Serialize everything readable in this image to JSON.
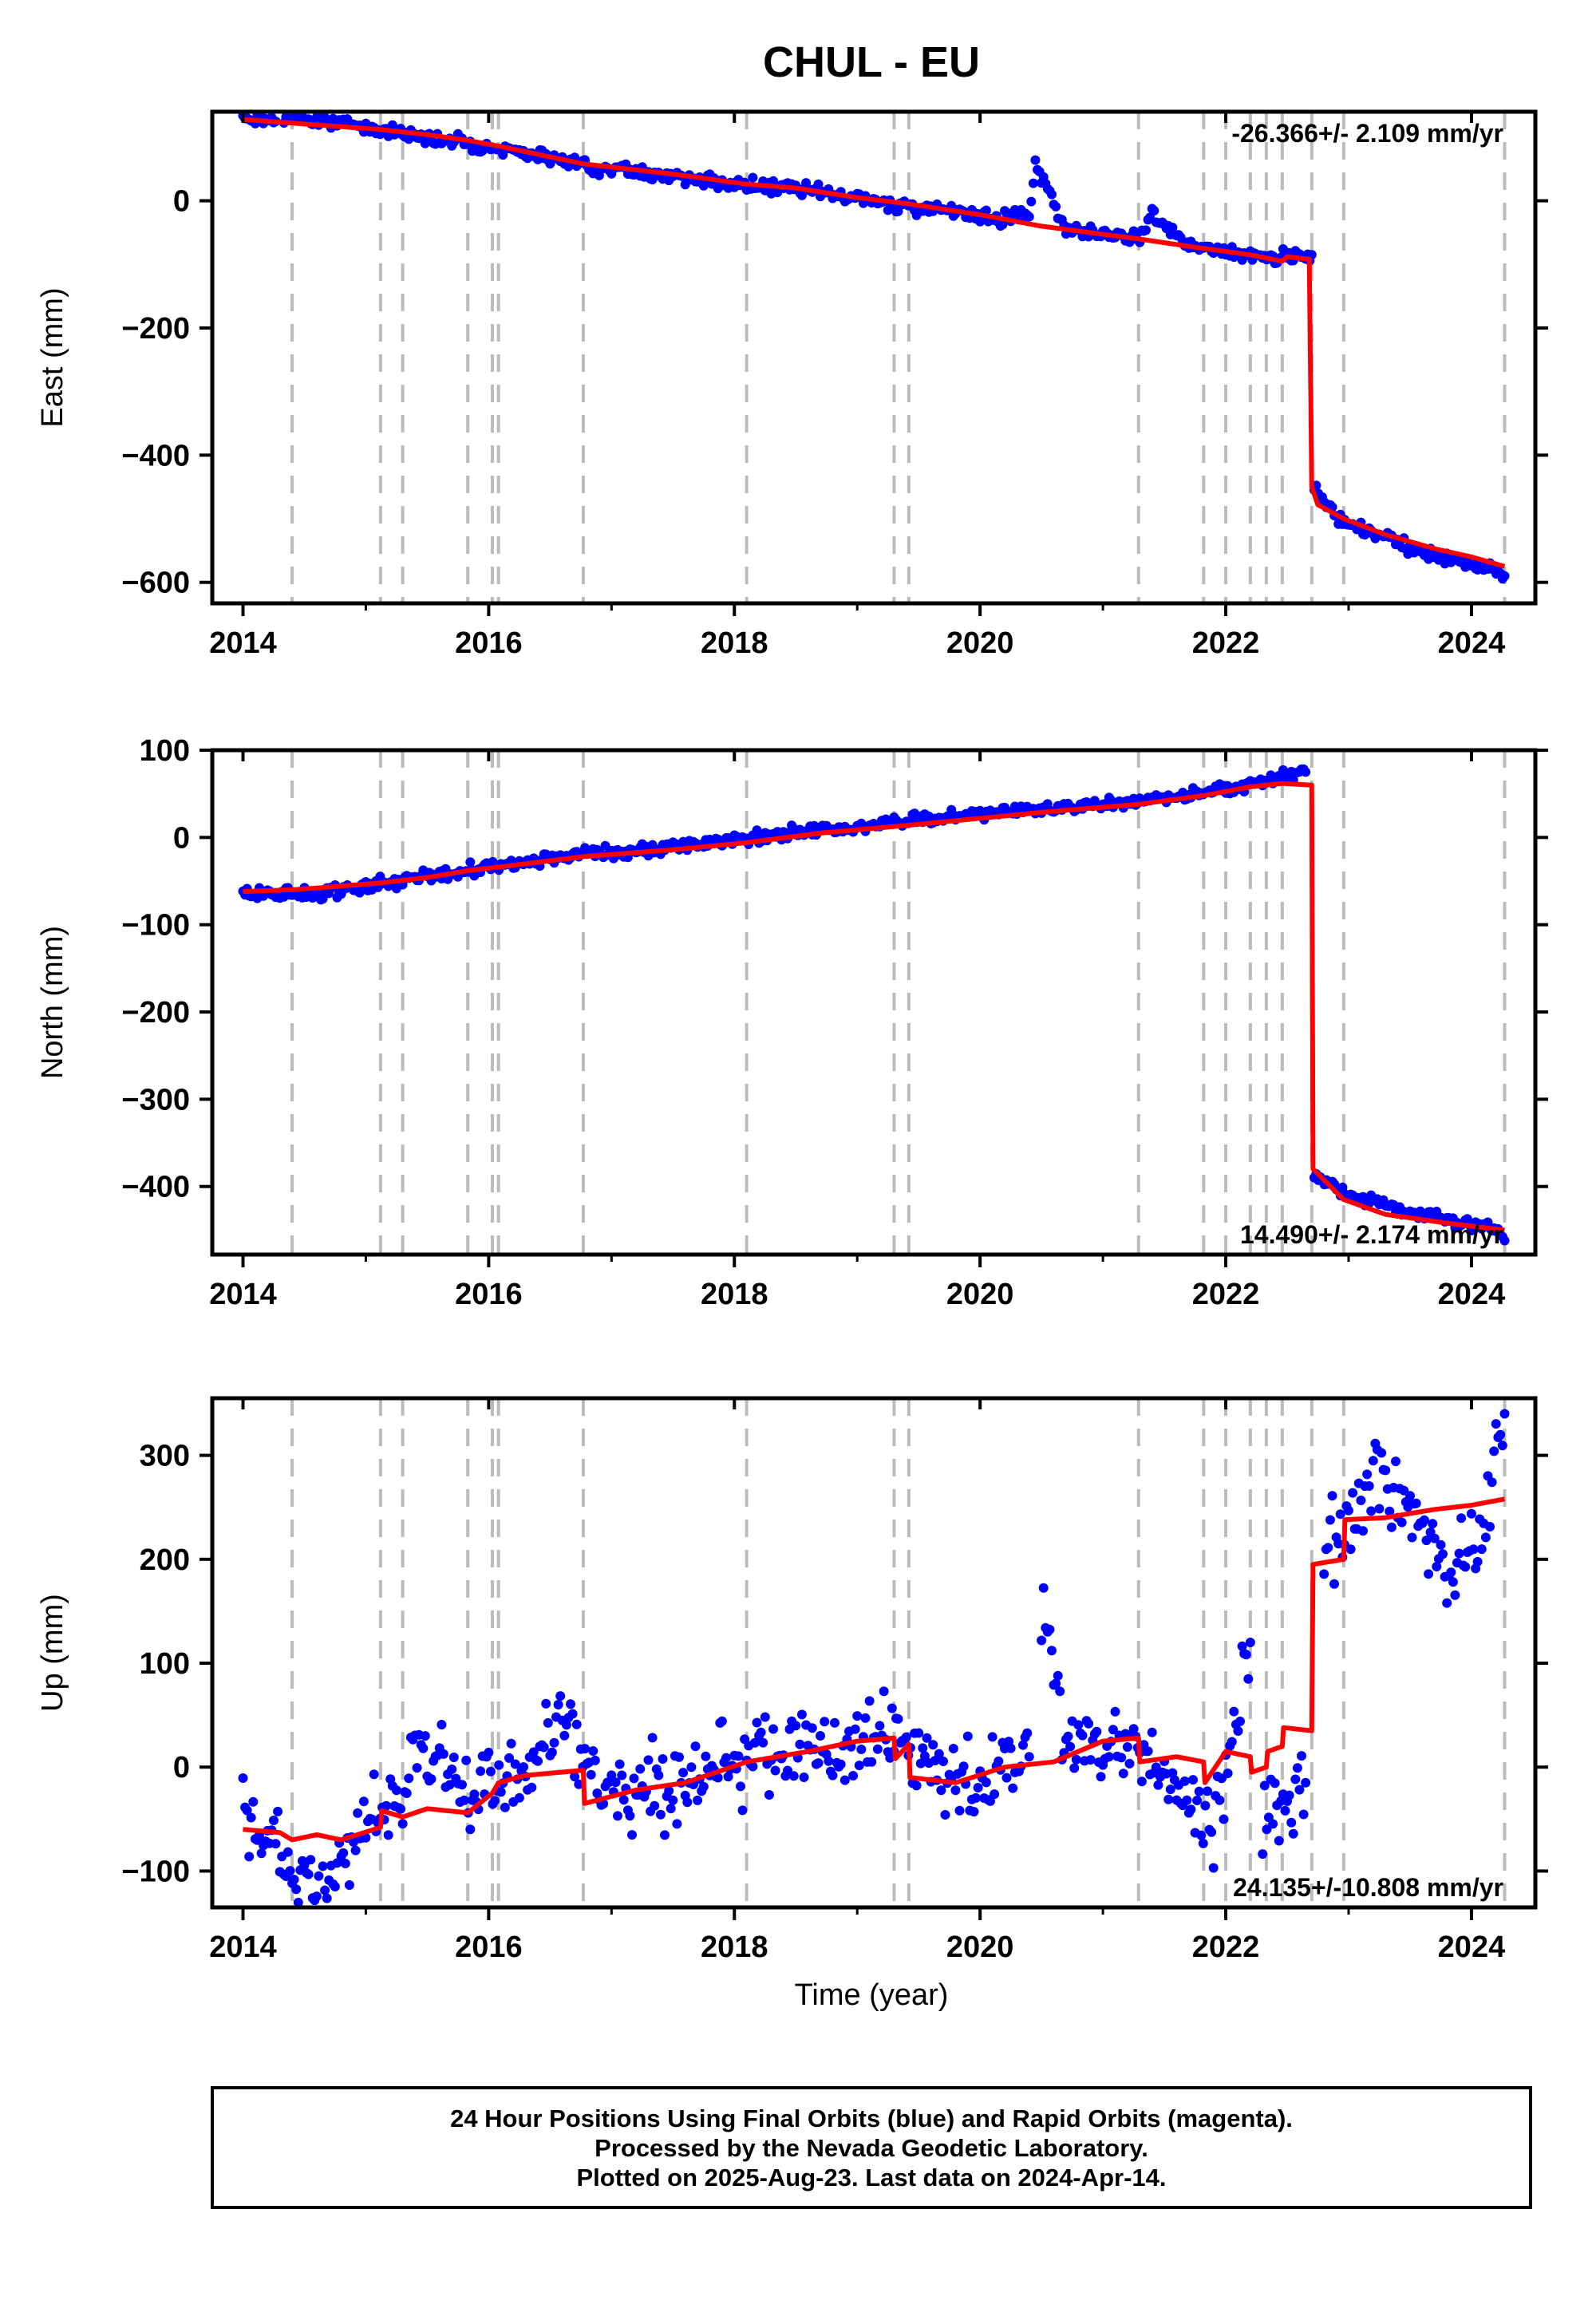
{
  "title": "CHUL - EU",
  "xlabel": "Time (year)",
  "footer": {
    "line1": "24 Hour Positions Using Final Orbits (blue) and Rapid Orbits (magenta).",
    "line2": "Processed by the Nevada Geodetic Laboratory.",
    "line3": "Plotted on 2025-Aug-23. Last data on 2024-Apr-14."
  },
  "colors": {
    "points": "#0000ff",
    "model": "#ff0000",
    "events": "#bbbbbb",
    "frame": "#000000"
  },
  "chart_data": [
    {
      "type": "scatter",
      "panel": "east",
      "ylabel": "East (mm)",
      "rate_text": "-26.366+/- 2.109 mm/yr",
      "rate_position": "top-right",
      "xlim": [
        2013.75,
        2024.52
      ],
      "ylim": [
        -633,
        140
      ],
      "xticks": [
        2014,
        2016,
        2018,
        2020,
        2022,
        2024
      ],
      "yticks": [
        0,
        -200,
        -400,
        -600
      ],
      "event_lines_x": [
        2014.4,
        2015.12,
        2015.3,
        2015.83,
        2016.03,
        2016.08,
        2016.77,
        2018.1,
        2019.3,
        2019.42,
        2021.29,
        2021.82,
        2022.0,
        2022.2,
        2022.33,
        2022.46,
        2022.7,
        2022.96,
        2024.27
      ],
      "series": [
        {
          "kind": "scatter",
          "values": [
            [
              2014.0,
              130
            ],
            [
              2014.6,
              130
            ],
            [
              2015.0,
              115
            ],
            [
              2015.2,
              110
            ],
            [
              2015.5,
              100
            ],
            [
              2015.8,
              92
            ],
            [
              2016.0,
              85
            ],
            [
              2016.3,
              75
            ],
            [
              2016.6,
              62
            ],
            [
              2016.9,
              53
            ],
            [
              2017.2,
              46
            ],
            [
              2017.5,
              39
            ],
            [
              2017.8,
              30
            ],
            [
              2018.1,
              25
            ],
            [
              2018.4,
              20
            ],
            [
              2018.7,
              12
            ],
            [
              2019.0,
              4
            ],
            [
              2019.3,
              -5
            ],
            [
              2019.6,
              -13
            ],
            [
              2019.9,
              -20
            ],
            [
              2020.2,
              -28
            ],
            [
              2020.4,
              -20
            ],
            [
              2020.45,
              55
            ],
            [
              2020.7,
              -42
            ],
            [
              2021.0,
              -50
            ],
            [
              2021.3,
              -58
            ],
            [
              2021.4,
              -20
            ],
            [
              2021.7,
              -72
            ],
            [
              2022.0,
              -80
            ],
            [
              2022.3,
              -90
            ],
            [
              2022.7,
              -85
            ],
            [
              2022.72,
              -450
            ],
            [
              2022.9,
              -500
            ],
            [
              2023.2,
              -520
            ],
            [
              2023.5,
              -545
            ],
            [
              2023.8,
              -565
            ],
            [
              2024.1,
              -575
            ],
            [
              2024.27,
              -590
            ]
          ]
        },
        {
          "kind": "model",
          "values": [
            [
              2014.0,
              128
            ],
            [
              2014.4,
              122
            ],
            [
              2015.12,
              112
            ],
            [
              2015.5,
              104
            ],
            [
              2015.83,
              95
            ],
            [
              2016.08,
              86
            ],
            [
              2016.77,
              58
            ],
            [
              2017.5,
              42
            ],
            [
              2018.1,
              26
            ],
            [
              2018.5,
              20
            ],
            [
              2019.0,
              5
            ],
            [
              2019.42,
              -5
            ],
            [
              2020.0,
              -22
            ],
            [
              2020.5,
              -40
            ],
            [
              2021.29,
              -60
            ],
            [
              2021.82,
              -75
            ],
            [
              2022.2,
              -85
            ],
            [
              2022.46,
              -95
            ],
            [
              2022.5,
              -88
            ],
            [
              2022.68,
              -92
            ],
            [
              2022.7,
              -450
            ],
            [
              2022.75,
              -478
            ],
            [
              2022.96,
              -500
            ],
            [
              2023.3,
              -525
            ],
            [
              2023.7,
              -547
            ],
            [
              2024.0,
              -560
            ],
            [
              2024.27,
              -575
            ]
          ]
        }
      ]
    },
    {
      "type": "scatter",
      "panel": "north",
      "ylabel": "North (mm)",
      "rate_text": "14.490+/- 2.174 mm/yr",
      "rate_position": "bottom-right",
      "xlim": [
        2013.75,
        2024.52
      ],
      "ylim": [
        -478,
        100
      ],
      "xticks": [
        2014,
        2016,
        2018,
        2020,
        2022,
        2024
      ],
      "yticks": [
        100,
        0,
        -100,
        -200,
        -300,
        -400
      ],
      "event_lines_x": [
        2014.4,
        2015.12,
        2015.3,
        2015.83,
        2016.03,
        2016.08,
        2016.77,
        2018.1,
        2019.3,
        2019.42,
        2021.29,
        2021.82,
        2022.0,
        2022.2,
        2022.33,
        2022.46,
        2022.7,
        2022.96,
        2024.27
      ],
      "series": [
        {
          "kind": "scatter",
          "values": [
            [
              2014.0,
              -63
            ],
            [
              2014.6,
              -65
            ],
            [
              2015.0,
              -55
            ],
            [
              2015.3,
              -48
            ],
            [
              2015.8,
              -38
            ],
            [
              2016.2,
              -30
            ],
            [
              2016.6,
              -22
            ],
            [
              2017.0,
              -18
            ],
            [
              2017.4,
              -12
            ],
            [
              2017.8,
              -6
            ],
            [
              2018.2,
              0
            ],
            [
              2018.6,
              8
            ],
            [
              2019.0,
              12
            ],
            [
              2019.4,
              20
            ],
            [
              2019.8,
              25
            ],
            [
              2020.2,
              28
            ],
            [
              2020.6,
              33
            ],
            [
              2021.0,
              38
            ],
            [
              2021.4,
              42
            ],
            [
              2021.8,
              50
            ],
            [
              2022.2,
              60
            ],
            [
              2022.65,
              75
            ],
            [
              2022.72,
              -385
            ],
            [
              2023.0,
              -410
            ],
            [
              2023.4,
              -425
            ],
            [
              2023.8,
              -438
            ],
            [
              2024.2,
              -448
            ],
            [
              2024.27,
              -462
            ]
          ]
        },
        {
          "kind": "model",
          "values": [
            [
              2014.0,
              -62
            ],
            [
              2014.4,
              -60
            ],
            [
              2014.6,
              -58
            ],
            [
              2015.12,
              -52
            ],
            [
              2015.5,
              -46
            ],
            [
              2015.83,
              -38
            ],
            [
              2016.08,
              -34
            ],
            [
              2016.77,
              -22
            ],
            [
              2017.5,
              -14
            ],
            [
              2018.1,
              -6
            ],
            [
              2018.7,
              5
            ],
            [
              2019.42,
              14
            ],
            [
              2020.0,
              22
            ],
            [
              2020.6,
              30
            ],
            [
              2021.29,
              38
            ],
            [
              2021.82,
              48
            ],
            [
              2022.2,
              58
            ],
            [
              2022.46,
              62
            ],
            [
              2022.7,
              60
            ],
            [
              2022.71,
              -380
            ],
            [
              2022.96,
              -415
            ],
            [
              2023.3,
              -432
            ],
            [
              2023.8,
              -442
            ],
            [
              2024.27,
              -450
            ]
          ]
        }
      ]
    },
    {
      "type": "scatter",
      "panel": "up",
      "ylabel": "Up (mm)",
      "rate_text": "24.135+/-10.808 mm/yr",
      "rate_position": "bottom-right",
      "xlim": [
        2013.75,
        2024.52
      ],
      "ylim": [
        -135,
        355
      ],
      "xticks": [
        2014,
        2016,
        2018,
        2020,
        2022,
        2024
      ],
      "yticks": [
        300,
        200,
        100,
        0,
        -100
      ],
      "event_lines_x": [
        2014.4,
        2015.12,
        2015.3,
        2015.83,
        2016.03,
        2016.08,
        2016.77,
        2018.1,
        2019.3,
        2019.42,
        2021.29,
        2021.82,
        2022.0,
        2022.2,
        2022.33,
        2022.46,
        2022.7,
        2022.96,
        2024.27
      ],
      "series": [
        {
          "kind": "scatter",
          "values": [
            [
              2014.0,
              -48
            ],
            [
              2014.65,
              -127
            ],
            [
              2015.0,
              -50
            ],
            [
              2015.3,
              -40
            ],
            [
              2015.4,
              25
            ],
            [
              2015.9,
              -35
            ],
            [
              2016.2,
              -10
            ],
            [
              2016.6,
              45
            ],
            [
              2016.9,
              -35
            ],
            [
              2017.3,
              -20
            ],
            [
              2017.6,
              -10
            ],
            [
              2018.0,
              5
            ],
            [
              2018.4,
              20
            ],
            [
              2018.8,
              15
            ],
            [
              2019.2,
              30
            ],
            [
              2019.5,
              10
            ],
            [
              2019.8,
              -20
            ],
            [
              2020.1,
              -10
            ],
            [
              2020.4,
              10
            ],
            [
              2020.5,
              165
            ],
            [
              2020.7,
              20
            ],
            [
              2021.0,
              30
            ],
            [
              2021.3,
              10
            ],
            [
              2021.6,
              -20
            ],
            [
              2021.9,
              -60
            ],
            [
              2022.1,
              60
            ],
            [
              2022.2,
              120
            ],
            [
              2022.3,
              -50
            ],
            [
              2022.65,
              -15
            ],
            [
              2022.8,
              200
            ],
            [
              2023.0,
              240
            ],
            [
              2023.3,
              280
            ],
            [
              2023.6,
              240
            ],
            [
              2023.8,
              180
            ],
            [
              2024.1,
              220
            ],
            [
              2024.2,
              310
            ],
            [
              2024.27,
              340
            ]
          ]
        },
        {
          "kind": "model",
          "values": [
            [
              2014.0,
              -60
            ],
            [
              2014.3,
              -63
            ],
            [
              2014.4,
              -70
            ],
            [
              2014.6,
              -65
            ],
            [
              2014.8,
              -70
            ],
            [
              2015.12,
              -58
            ],
            [
              2015.13,
              -42
            ],
            [
              2015.3,
              -48
            ],
            [
              2015.5,
              -40
            ],
            [
              2015.83,
              -44
            ],
            [
              2016.03,
              -25
            ],
            [
              2016.08,
              -15
            ],
            [
              2016.3,
              -8
            ],
            [
              2016.77,
              -3
            ],
            [
              2016.78,
              -35
            ],
            [
              2017.2,
              -22
            ],
            [
              2017.6,
              -15
            ],
            [
              2018.1,
              5
            ],
            [
              2018.6,
              15
            ],
            [
              2019.0,
              25
            ],
            [
              2019.3,
              28
            ],
            [
              2019.31,
              8
            ],
            [
              2019.42,
              22
            ],
            [
              2019.43,
              -10
            ],
            [
              2019.8,
              -15
            ],
            [
              2020.2,
              0
            ],
            [
              2020.6,
              5
            ],
            [
              2021.0,
              25
            ],
            [
              2021.29,
              28
            ],
            [
              2021.3,
              5
            ],
            [
              2021.6,
              10
            ],
            [
              2021.82,
              5
            ],
            [
              2021.83,
              -15
            ],
            [
              2022.0,
              15
            ],
            [
              2022.2,
              10
            ],
            [
              2022.21,
              -5
            ],
            [
              2022.33,
              0
            ],
            [
              2022.34,
              15
            ],
            [
              2022.46,
              20
            ],
            [
              2022.47,
              38
            ],
            [
              2022.7,
              35
            ],
            [
              2022.71,
              195
            ],
            [
              2022.96,
              200
            ],
            [
              2022.97,
              238
            ],
            [
              2023.3,
              240
            ],
            [
              2023.7,
              248
            ],
            [
              2024.0,
              252
            ],
            [
              2024.27,
              258
            ]
          ]
        }
      ]
    }
  ]
}
